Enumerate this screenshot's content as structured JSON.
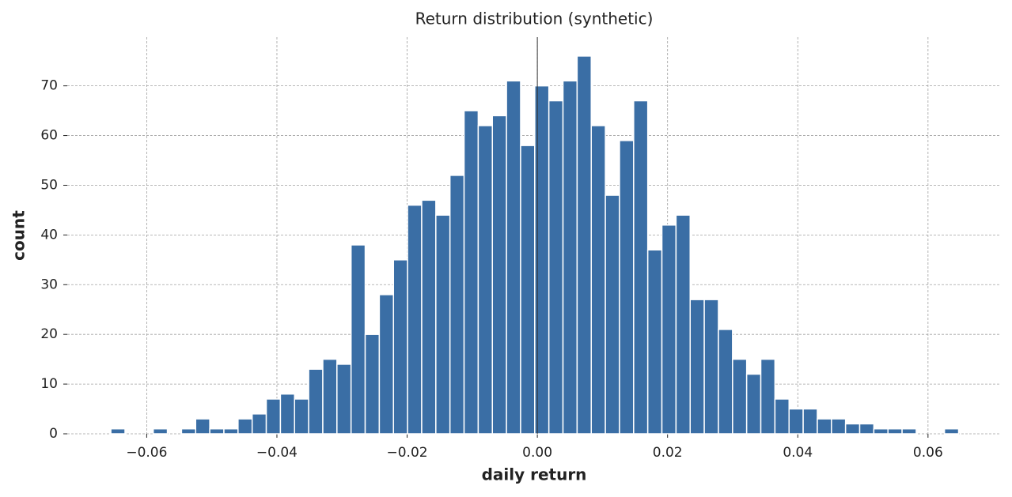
{
  "chart_data": {
    "type": "histogram",
    "title": "Return distribution (synthetic)",
    "x_label": "daily return",
    "y_label": "count",
    "bins": [
      -0.0655,
      -0.06333,
      -0.06116,
      -0.05899,
      -0.05682,
      -0.05465,
      -0.05248,
      -0.05031,
      -0.04814,
      -0.04597,
      -0.0438,
      -0.04163,
      -0.03946,
      -0.03729,
      -0.03512,
      -0.03295,
      -0.03078,
      -0.02861,
      -0.02644,
      -0.02427,
      -0.0221,
      -0.01993,
      -0.01776,
      -0.01559,
      -0.01342,
      -0.01125,
      -0.00908,
      -0.00691,
      -0.00474,
      -0.00257,
      -0.0004,
      0.00177,
      0.00394,
      0.00611,
      0.00828,
      0.01045,
      0.01262,
      0.01479,
      0.01696,
      0.01913,
      0.0213,
      0.02347,
      0.02564,
      0.02781,
      0.02998,
      0.03215,
      0.03432,
      0.03649,
      0.03866,
      0.04083,
      0.043,
      0.04517,
      0.04734,
      0.04951,
      0.05168,
      0.05385,
      0.05602,
      0.05819,
      0.06036,
      0.06253,
      0.0647
    ],
    "values": [
      1,
      0,
      0,
      1,
      0,
      1,
      3,
      1,
      1,
      3,
      4,
      7,
      8,
      7,
      13,
      15,
      14,
      38,
      20,
      28,
      35,
      46,
      47,
      44,
      52,
      65,
      62,
      64,
      71,
      58,
      70,
      67,
      71,
      76,
      62,
      48,
      59,
      67,
      37,
      42,
      44,
      27,
      27,
      21,
      15,
      12,
      15,
      7,
      5,
      5,
      3,
      3,
      2,
      2,
      1,
      1,
      1,
      0,
      0,
      1
    ],
    "color": "#3a6ea5",
    "xlim": [
      -0.0722,
      0.0712
    ],
    "ylim": [
      0,
      79.8
    ],
    "xticks": [
      {
        "value": -0.06,
        "label": "−0.06"
      },
      {
        "value": -0.04,
        "label": "−0.04"
      },
      {
        "value": -0.02,
        "label": "−0.02"
      },
      {
        "value": 0,
        "label": "0.00"
      },
      {
        "value": 0.02,
        "label": "0.02"
      },
      {
        "value": 0.04,
        "label": "0.04"
      },
      {
        "value": 0.06,
        "label": "0.06"
      }
    ],
    "yticks": [
      0,
      10,
      20,
      30,
      40,
      50,
      60,
      70
    ],
    "vline": 0,
    "grid": true
  }
}
